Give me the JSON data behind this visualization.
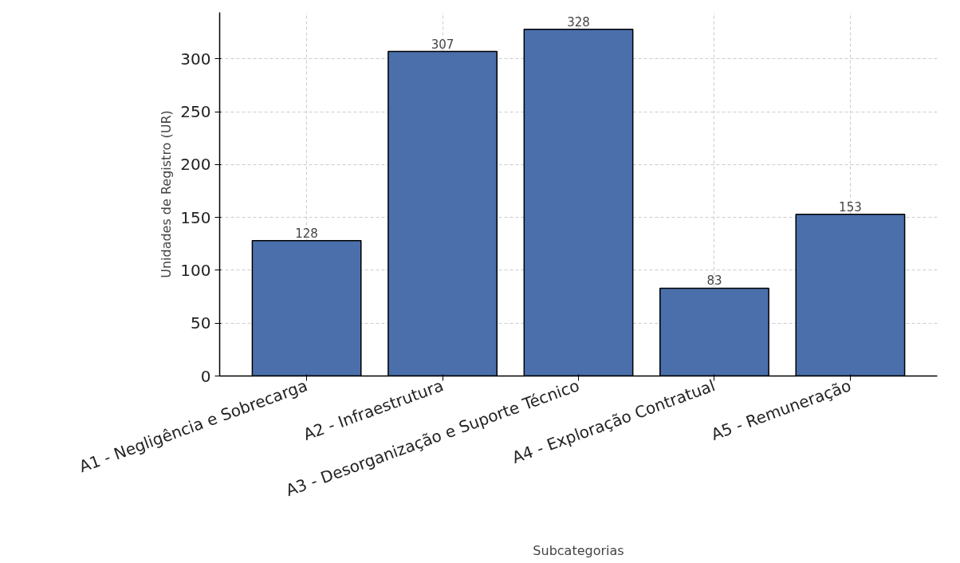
{
  "chart_data": {
    "type": "bar",
    "xlabel": "Subcategorias",
    "ylabel": "Unidades de Registro (UR)",
    "categories": [
      "A1 - Negligência e Sobrecarga",
      "A2 - Infraestrutura",
      "A3 - Desorganização e Suporte Técnico",
      "A4 - Exploração Contratual",
      "A5 - Remuneração"
    ],
    "values": [
      128,
      307,
      328,
      83,
      153
    ],
    "color": "#4a6fab",
    "ylim": [
      0,
      344
    ],
    "yticks": [
      0,
      50,
      100,
      150,
      200,
      250,
      300
    ],
    "grid": true,
    "data_labels": true
  }
}
